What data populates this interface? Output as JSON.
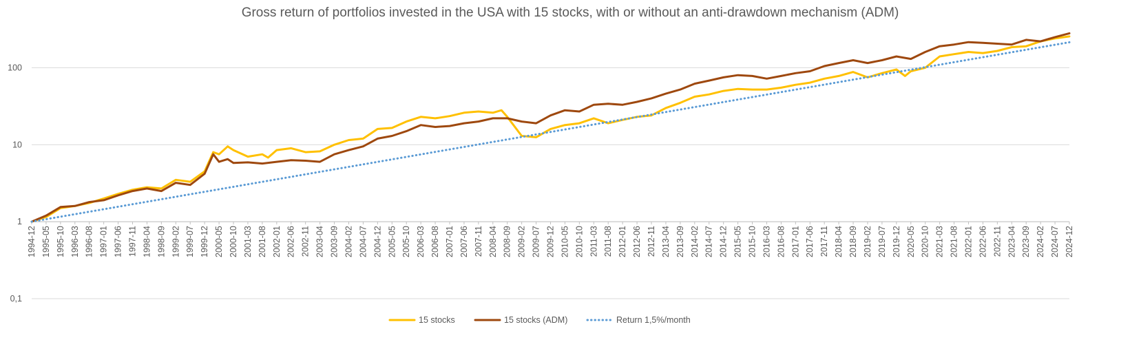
{
  "chart_data": {
    "type": "line",
    "title": "Gross return of portfolios invested in the USA with 15 stocks, with or without an anti-drawdown mechanism (ADM)",
    "xlabel": "",
    "ylabel": "",
    "y_scale": "log",
    "ylim": [
      0.1,
      300
    ],
    "y_ticks": [
      "0,1",
      "1",
      "10",
      "100"
    ],
    "x_tick_labels": [
      "1994-12",
      "1995-05",
      "1995-10",
      "1996-03",
      "1996-08",
      "1997-01",
      "1997-06",
      "1997-11",
      "1998-04",
      "1998-09",
      "1999-02",
      "1999-07",
      "1999-12",
      "2000-05",
      "2000-10",
      "2001-03",
      "2001-08",
      "2002-01",
      "2002-06",
      "2002-11",
      "2003-04",
      "2003-09",
      "2004-02",
      "2004-07",
      "2004-12",
      "2005-05",
      "2005-10",
      "2006-03",
      "2006-08",
      "2007-01",
      "2007-06",
      "2007-11",
      "2008-04",
      "2008-09",
      "2009-02",
      "2009-07",
      "2009-12",
      "2010-05",
      "2010-10",
      "2011-03",
      "2011-08",
      "2012-01",
      "2012-06",
      "2012-11",
      "2013-04",
      "2013-09",
      "2014-02",
      "2014-07",
      "2014-12",
      "2015-05",
      "2015-10",
      "2016-03",
      "2016-08",
      "2017-01",
      "2017-06",
      "2017-11",
      "2018-04",
      "2018-09",
      "2019-02",
      "2019-07",
      "2019-12",
      "2020-05",
      "2020-10",
      "2021-03",
      "2021-08",
      "2022-01",
      "2022-06",
      "2022-11",
      "2023-04",
      "2023-09",
      "2024-02",
      "2024-07",
      "2024-12"
    ],
    "grid": true,
    "legend_position": "bottom",
    "series": [
      {
        "name": "15 stocks",
        "color": "#FFC000",
        "style": "solid",
        "points": [
          [
            "1994-12",
            1
          ],
          [
            "1995-05",
            1.15
          ],
          [
            "1995-10",
            1.5
          ],
          [
            "1996-03",
            1.6
          ],
          [
            "1996-08",
            1.75
          ],
          [
            "1997-01",
            2.0
          ],
          [
            "1997-06",
            2.3
          ],
          [
            "1997-11",
            2.6
          ],
          [
            "1998-04",
            2.8
          ],
          [
            "1998-09",
            2.7
          ],
          [
            "1999-02",
            3.5
          ],
          [
            "1999-07",
            3.3
          ],
          [
            "1999-12",
            4.5
          ],
          [
            "2000-03",
            8.0
          ],
          [
            "2000-05",
            7.5
          ],
          [
            "2000-08",
            9.5
          ],
          [
            "2000-10",
            8.5
          ],
          [
            "2001-03",
            7.0
          ],
          [
            "2001-08",
            7.5
          ],
          [
            "2001-10",
            6.8
          ],
          [
            "2002-01",
            8.5
          ],
          [
            "2002-06",
            9.0
          ],
          [
            "2002-11",
            8.0
          ],
          [
            "2003-04",
            8.2
          ],
          [
            "2003-09",
            10.0
          ],
          [
            "2004-02",
            11.5
          ],
          [
            "2004-07",
            12.0
          ],
          [
            "2004-12",
            16.0
          ],
          [
            "2005-05",
            16.5
          ],
          [
            "2005-10",
            20.0
          ],
          [
            "2006-03",
            23.0
          ],
          [
            "2006-08",
            22.0
          ],
          [
            "2007-01",
            23.5
          ],
          [
            "2007-06",
            26.0
          ],
          [
            "2007-11",
            27.0
          ],
          [
            "2008-04",
            26.0
          ],
          [
            "2008-07",
            28.0
          ],
          [
            "2008-09",
            23.0
          ],
          [
            "2009-02",
            13.0
          ],
          [
            "2009-07",
            12.5
          ],
          [
            "2009-12",
            16.0
          ],
          [
            "2010-05",
            18.0
          ],
          [
            "2010-10",
            19.0
          ],
          [
            "2011-03",
            22.0
          ],
          [
            "2011-08",
            19.0
          ],
          [
            "2012-01",
            21.0
          ],
          [
            "2012-06",
            23.0
          ],
          [
            "2012-11",
            24.0
          ],
          [
            "2013-04",
            30.0
          ],
          [
            "2013-09",
            35.0
          ],
          [
            "2014-02",
            42.0
          ],
          [
            "2014-07",
            45.0
          ],
          [
            "2014-12",
            50.0
          ],
          [
            "2015-05",
            53.0
          ],
          [
            "2015-10",
            52.0
          ],
          [
            "2016-03",
            52.0
          ],
          [
            "2016-08",
            55.0
          ],
          [
            "2017-01",
            60.0
          ],
          [
            "2017-06",
            64.0
          ],
          [
            "2017-11",
            72.0
          ],
          [
            "2018-04",
            78.0
          ],
          [
            "2018-09",
            88.0
          ],
          [
            "2019-02",
            75.0
          ],
          [
            "2019-07",
            85.0
          ],
          [
            "2019-12",
            95.0
          ],
          [
            "2020-03",
            78.0
          ],
          [
            "2020-05",
            90.0
          ],
          [
            "2020-10",
            100.0
          ],
          [
            "2021-03",
            140.0
          ],
          [
            "2021-08",
            150.0
          ],
          [
            "2022-01",
            160.0
          ],
          [
            "2022-06",
            155.0
          ],
          [
            "2022-11",
            165.0
          ],
          [
            "2023-04",
            185.0
          ],
          [
            "2023-09",
            190.0
          ],
          [
            "2024-02",
            220.0
          ],
          [
            "2024-07",
            240.0
          ],
          [
            "2024-12",
            255.0
          ]
        ]
      },
      {
        "name": "15 stocks (ADM)",
        "color": "#9E480E",
        "style": "solid",
        "points": [
          [
            "1994-12",
            1
          ],
          [
            "1995-05",
            1.2
          ],
          [
            "1995-10",
            1.55
          ],
          [
            "1996-03",
            1.6
          ],
          [
            "1996-08",
            1.8
          ],
          [
            "1997-01",
            1.9
          ],
          [
            "1997-06",
            2.2
          ],
          [
            "1997-11",
            2.5
          ],
          [
            "1998-04",
            2.7
          ],
          [
            "1998-09",
            2.5
          ],
          [
            "1999-02",
            3.2
          ],
          [
            "1999-07",
            3.0
          ],
          [
            "1999-12",
            4.2
          ],
          [
            "2000-03",
            7.5
          ],
          [
            "2000-05",
            6.0
          ],
          [
            "2000-08",
            6.5
          ],
          [
            "2000-10",
            5.8
          ],
          [
            "2001-03",
            5.9
          ],
          [
            "2001-08",
            5.7
          ],
          [
            "2002-01",
            6.0
          ],
          [
            "2002-06",
            6.3
          ],
          [
            "2002-11",
            6.2
          ],
          [
            "2003-04",
            6.0
          ],
          [
            "2003-09",
            7.5
          ],
          [
            "2004-02",
            8.5
          ],
          [
            "2004-07",
            9.5
          ],
          [
            "2004-12",
            12.0
          ],
          [
            "2005-05",
            13.0
          ],
          [
            "2005-10",
            15.0
          ],
          [
            "2006-03",
            18.0
          ],
          [
            "2006-08",
            17.0
          ],
          [
            "2007-01",
            17.5
          ],
          [
            "2007-06",
            19.0
          ],
          [
            "2007-11",
            20.0
          ],
          [
            "2008-04",
            22.0
          ],
          [
            "2008-09",
            22.0
          ],
          [
            "2009-02",
            20.0
          ],
          [
            "2009-07",
            19.0
          ],
          [
            "2009-12",
            24.0
          ],
          [
            "2010-05",
            28.0
          ],
          [
            "2010-10",
            27.0
          ],
          [
            "2011-03",
            33.0
          ],
          [
            "2011-08",
            34.0
          ],
          [
            "2012-01",
            33.0
          ],
          [
            "2012-06",
            36.0
          ],
          [
            "2012-11",
            40.0
          ],
          [
            "2013-04",
            46.0
          ],
          [
            "2013-09",
            52.0
          ],
          [
            "2014-02",
            62.0
          ],
          [
            "2014-07",
            68.0
          ],
          [
            "2014-12",
            75.0
          ],
          [
            "2015-05",
            80.0
          ],
          [
            "2015-10",
            78.0
          ],
          [
            "2016-03",
            72.0
          ],
          [
            "2016-08",
            78.0
          ],
          [
            "2017-01",
            85.0
          ],
          [
            "2017-06",
            90.0
          ],
          [
            "2017-11",
            105.0
          ],
          [
            "2018-04",
            115.0
          ],
          [
            "2018-09",
            125.0
          ],
          [
            "2019-02",
            115.0
          ],
          [
            "2019-07",
            125.0
          ],
          [
            "2019-12",
            140.0
          ],
          [
            "2020-05",
            130.0
          ],
          [
            "2020-10",
            160.0
          ],
          [
            "2021-03",
            190.0
          ],
          [
            "2021-08",
            200.0
          ],
          [
            "2022-01",
            215.0
          ],
          [
            "2022-06",
            210.0
          ],
          [
            "2022-11",
            205.0
          ],
          [
            "2023-04",
            200.0
          ],
          [
            "2023-09",
            230.0
          ],
          [
            "2024-02",
            220.0
          ],
          [
            "2024-07",
            250.0
          ],
          [
            "2024-12",
            280.0
          ]
        ]
      },
      {
        "name": "Return 1,5%/month",
        "color": "#5B9BD5",
        "style": "dotted",
        "points": [
          [
            "1994-12",
            1
          ],
          [
            "2024-12",
            213.9
          ]
        ]
      }
    ]
  }
}
